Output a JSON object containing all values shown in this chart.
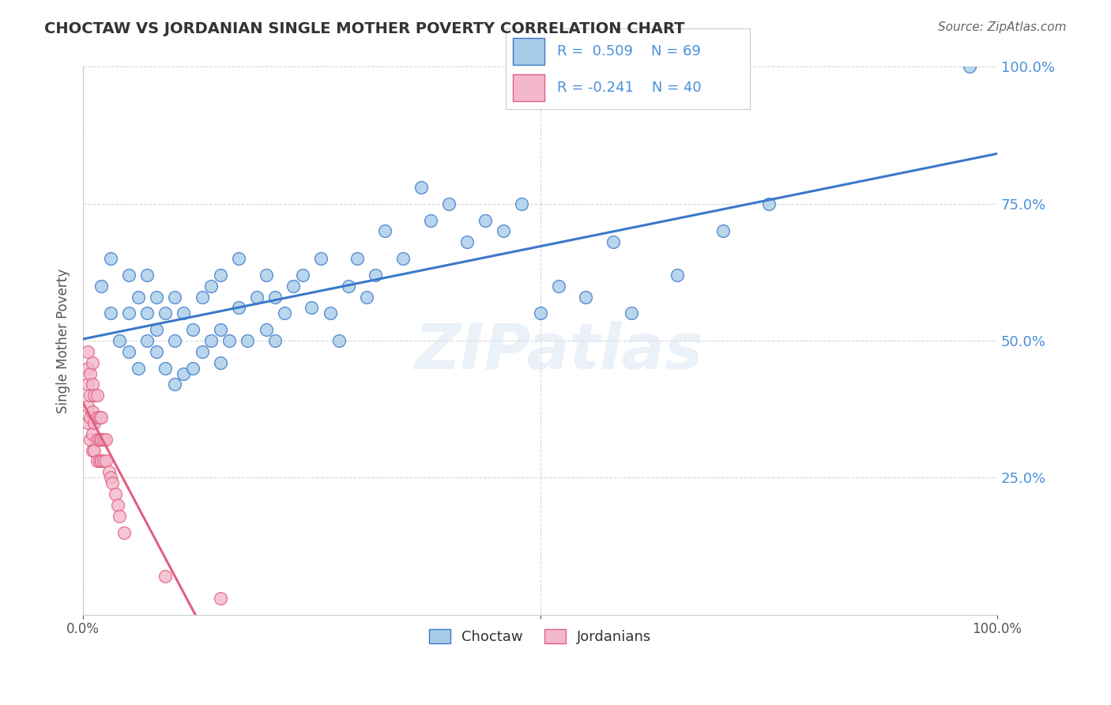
{
  "title": "CHOCTAW VS JORDANIAN SINGLE MOTHER POVERTY CORRELATION CHART",
  "source": "Source: ZipAtlas.com",
  "ylabel": "Single Mother Poverty",
  "xlim": [
    0.0,
    1.0
  ],
  "ylim": [
    0.0,
    1.0
  ],
  "ytick_positions": [
    0.25,
    0.5,
    0.75,
    1.0
  ],
  "ytick_labels": [
    "25.0%",
    "50.0%",
    "75.0%",
    "100.0%"
  ],
  "watermark": "ZIPatlas",
  "choctaw_color": "#a8cce8",
  "jordanian_color": "#f4b8cc",
  "choctaw_line_color": "#3a78c9",
  "jordanian_line_color": "#e06080",
  "R_choctaw": 0.509,
  "N_choctaw": 69,
  "R_jordanian": -0.241,
  "N_jordanian": 40,
  "choctaw_scatter_x": [
    0.02,
    0.03,
    0.03,
    0.04,
    0.05,
    0.05,
    0.05,
    0.06,
    0.06,
    0.07,
    0.07,
    0.07,
    0.08,
    0.08,
    0.08,
    0.09,
    0.09,
    0.1,
    0.1,
    0.1,
    0.11,
    0.11,
    0.12,
    0.12,
    0.13,
    0.13,
    0.14,
    0.14,
    0.15,
    0.15,
    0.15,
    0.16,
    0.17,
    0.17,
    0.18,
    0.19,
    0.2,
    0.2,
    0.21,
    0.21,
    0.22,
    0.23,
    0.24,
    0.25,
    0.26,
    0.27,
    0.28,
    0.29,
    0.3,
    0.31,
    0.32,
    0.33,
    0.35,
    0.37,
    0.38,
    0.4,
    0.42,
    0.44,
    0.46,
    0.48,
    0.5,
    0.52,
    0.55,
    0.58,
    0.6,
    0.65,
    0.7,
    0.75,
    0.97
  ],
  "choctaw_scatter_y": [
    0.6,
    0.55,
    0.65,
    0.5,
    0.48,
    0.55,
    0.62,
    0.45,
    0.58,
    0.5,
    0.55,
    0.62,
    0.48,
    0.52,
    0.58,
    0.45,
    0.55,
    0.42,
    0.5,
    0.58,
    0.44,
    0.55,
    0.45,
    0.52,
    0.48,
    0.58,
    0.5,
    0.6,
    0.46,
    0.52,
    0.62,
    0.5,
    0.56,
    0.65,
    0.5,
    0.58,
    0.52,
    0.62,
    0.5,
    0.58,
    0.55,
    0.6,
    0.62,
    0.56,
    0.65,
    0.55,
    0.5,
    0.6,
    0.65,
    0.58,
    0.62,
    0.7,
    0.65,
    0.78,
    0.72,
    0.75,
    0.68,
    0.72,
    0.7,
    0.75,
    0.55,
    0.6,
    0.58,
    0.68,
    0.55,
    0.62,
    0.7,
    0.75,
    1.0
  ],
  "jordanian_scatter_x": [
    0.005,
    0.005,
    0.005,
    0.005,
    0.005,
    0.008,
    0.008,
    0.008,
    0.008,
    0.01,
    0.01,
    0.01,
    0.01,
    0.01,
    0.012,
    0.012,
    0.012,
    0.015,
    0.015,
    0.015,
    0.015,
    0.018,
    0.018,
    0.018,
    0.02,
    0.02,
    0.02,
    0.022,
    0.022,
    0.025,
    0.025,
    0.028,
    0.03,
    0.032,
    0.035,
    0.038,
    0.04,
    0.045,
    0.09,
    0.15
  ],
  "jordanian_scatter_y": [
    0.35,
    0.38,
    0.42,
    0.45,
    0.48,
    0.32,
    0.36,
    0.4,
    0.44,
    0.3,
    0.33,
    0.37,
    0.42,
    0.46,
    0.3,
    0.35,
    0.4,
    0.28,
    0.32,
    0.36,
    0.4,
    0.28,
    0.32,
    0.36,
    0.28,
    0.32,
    0.36,
    0.28,
    0.32,
    0.28,
    0.32,
    0.26,
    0.25,
    0.24,
    0.22,
    0.2,
    0.18,
    0.15,
    0.07,
    0.03
  ],
  "background_color": "#ffffff",
  "grid_color": "#cccccc",
  "title_color": "#333333",
  "source_color": "#666666",
  "tick_color": "#4a90d9"
}
